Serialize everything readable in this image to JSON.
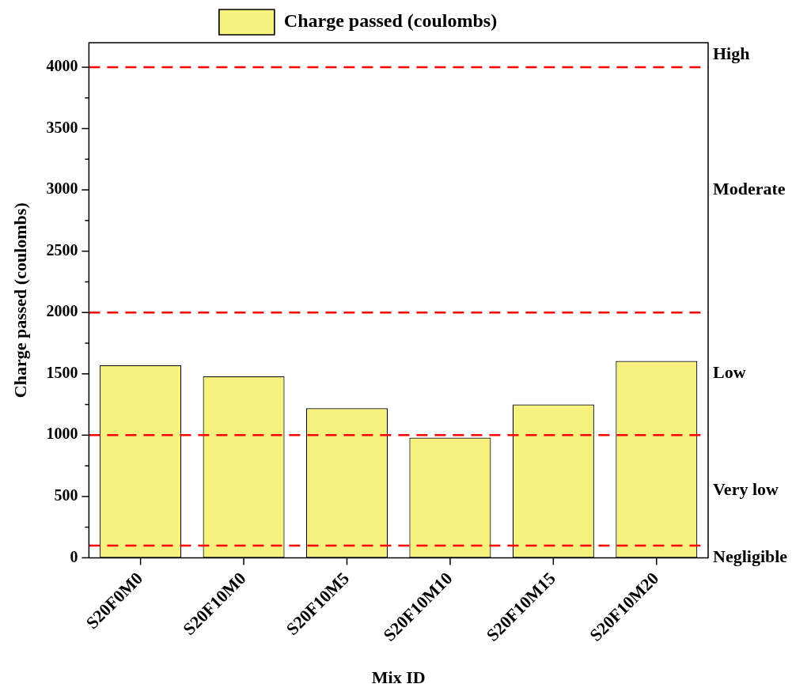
{
  "chart_data": {
    "type": "bar",
    "xlabel": "Mix ID",
    "ylabel": "Charge passed (coulombs)",
    "categories": [
      "S20F0M0",
      "S20F10M0",
      "S20F10M5",
      "S20F10M10",
      "S20F10M15",
      "S20F10M20"
    ],
    "series": [
      {
        "name": "Charge passed (coulombs)",
        "color": "#f7f27e",
        "values": [
          1570,
          1480,
          1220,
          980,
          1250,
          1605
        ]
      }
    ],
    "ylim": [
      0,
      4200
    ],
    "yticks": [
      0,
      {
        "value": 250,
        "label": null
      },
      500,
      {
        "value": 750,
        "label": null
      },
      1000,
      {
        "value": 1250,
        "label": null
      },
      1500,
      {
        "value": 1750,
        "label": null
      },
      2000,
      {
        "value": 2250,
        "label": null
      },
      2500,
      {
        "value": 2750,
        "label": null
      },
      3000,
      {
        "value": 3250,
        "label": null
      },
      3500,
      {
        "value": 3750,
        "label": null
      },
      4000
    ],
    "ref_lines": [
      {
        "axis": "y",
        "value": 100,
        "color": "#ff0000",
        "line_style": "dashed"
      },
      {
        "axis": "y",
        "value": 1000,
        "color": "#ff0000",
        "line_style": "dashed"
      },
      {
        "axis": "y",
        "value": 2000,
        "color": "#ff0000",
        "line_style": "dashed"
      },
      {
        "axis": "y",
        "value": 4000,
        "color": "#ff0000",
        "line_style": "dashed"
      }
    ],
    "annotations": [
      "High",
      "Moderate",
      "Low",
      "Very low",
      "Negligible"
    ],
    "legend": "top",
    "grid": false
  }
}
